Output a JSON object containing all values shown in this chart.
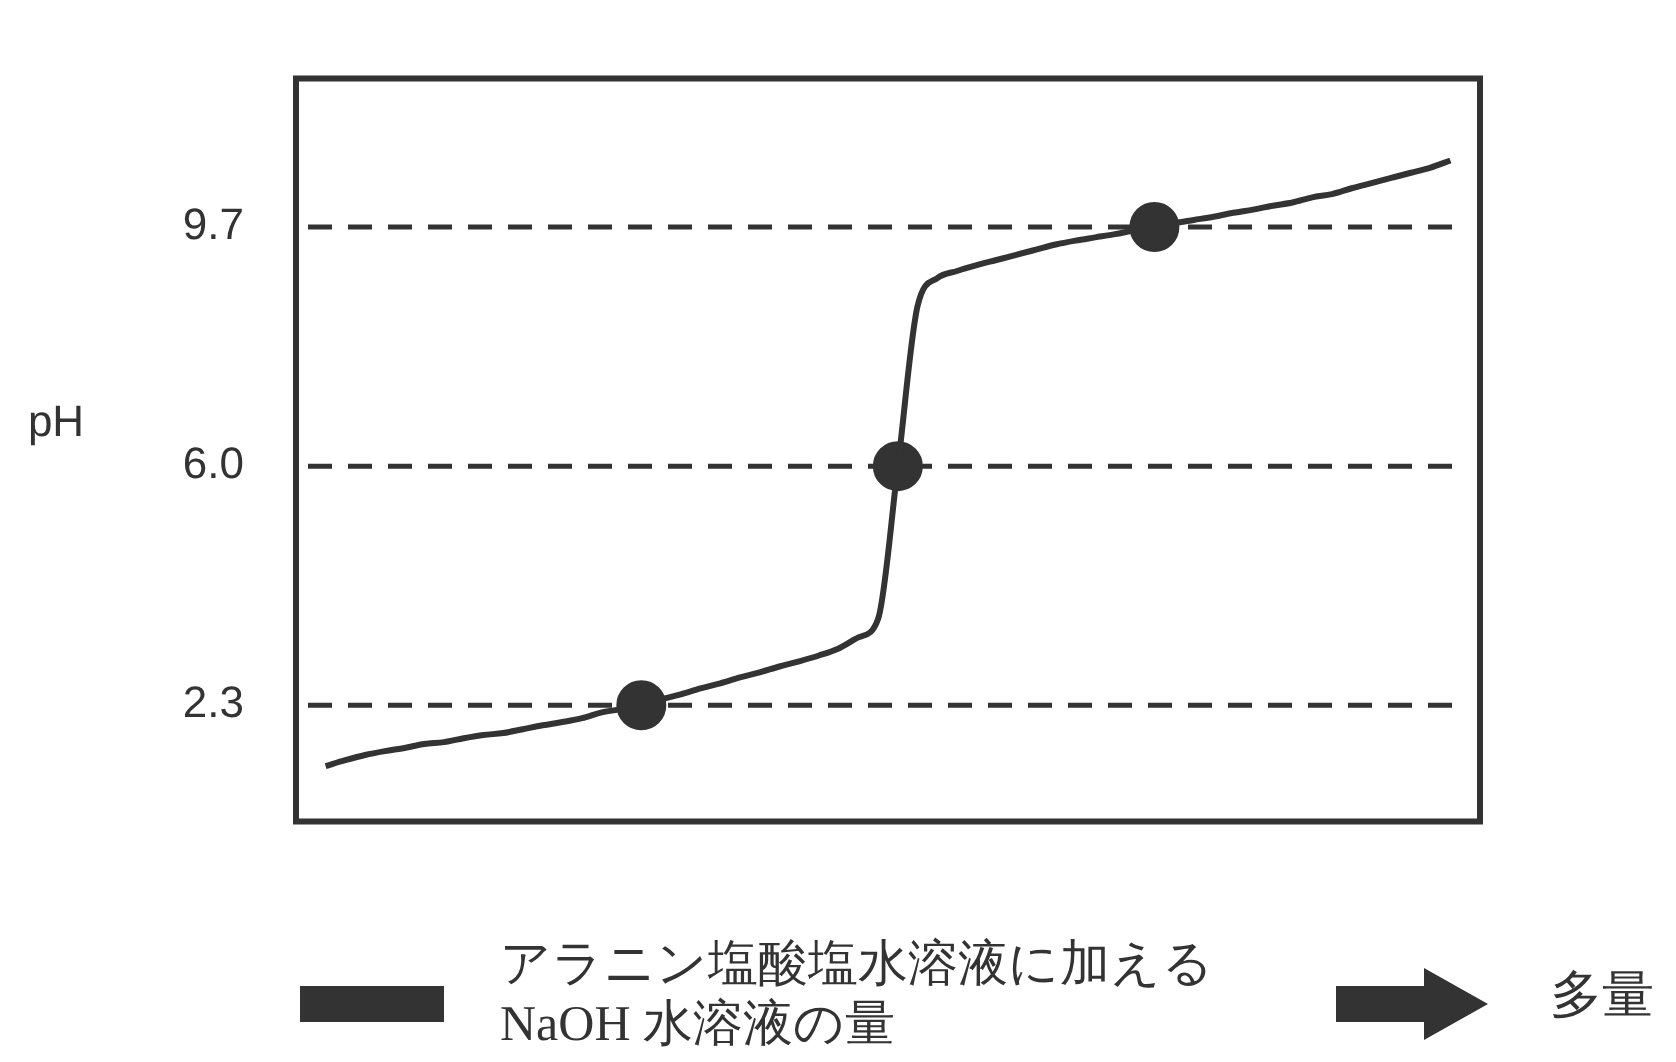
{
  "chart_data": {
    "type": "line",
    "ylabel": "pH",
    "xlabel": "アラニン塩酸塩水溶液に加える\nNaOH 水溶液の量",
    "categories": [
      null,
      null,
      null,
      null,
      null,
      null,
      null,
      null,
      null,
      null,
      null,
      null,
      null,
      null,
      null,
      null,
      null,
      null,
      null,
      null,
      null,
      null,
      null,
      null,
      null,
      null,
      null,
      null,
      null,
      null,
      null,
      null,
      null,
      null,
      null,
      null,
      null,
      null,
      null,
      null,
      null,
      null,
      null,
      null,
      null,
      null,
      null,
      null,
      null,
      null,
      null,
      null,
      null,
      null,
      null,
      null,
      null,
      null,
      null,
      null
    ],
    "series": [
      {
        "color": "#333333",
        "values": [
          null,
          1.36,
          1.45,
          1.53,
          1.59,
          1.64,
          1.7,
          1.73,
          1.79,
          1.84,
          1.87,
          1.93,
          1.99,
          2.04,
          2.1,
          2.19,
          2.24,
          2.3,
          2.39,
          2.47,
          2.56,
          2.64,
          2.73,
          2.81,
          2.9,
          2.98,
          3.07,
          3.18,
          3.35,
          3.64,
          6.0,
          8.48,
          8.91,
          9.02,
          9.11,
          9.19,
          9.27,
          9.35,
          9.43,
          9.49,
          9.54,
          9.59,
          9.65,
          9.7,
          9.76,
          9.81,
          9.86,
          9.92,
          9.97,
          10.03,
          10.08,
          10.16,
          10.21,
          10.3,
          10.38,
          10.46,
          10.54,
          10.62,
          10.73,
          null
        ]
      },
      {
        "type": "scatter",
        "color": "#333333",
        "values": [
          null,
          null,
          null,
          null,
          null,
          null,
          null,
          null,
          null,
          null,
          null,
          null,
          null,
          null,
          null,
          null,
          null,
          2.3,
          null,
          null,
          null,
          null,
          null,
          null,
          null,
          null,
          null,
          null,
          null,
          null,
          6.0,
          null,
          null,
          null,
          null,
          null,
          null,
          null,
          null,
          null,
          null,
          null,
          null,
          9.7,
          null,
          null,
          null,
          null,
          null,
          null,
          null,
          null,
          null,
          null,
          null,
          null,
          null,
          null,
          null,
          null
        ]
      }
    ],
    "line_style": "solid",
    "ylim": [
      0.5,
      12
    ],
    "yticks": [
      2.3,
      {
        "value": 6,
        "label": "6.0"
      },
      9.7
    ],
    "ref_lines": [
      {
        "axis": "y",
        "value": 2.3,
        "line_style": "dashed",
        "color": "#333333"
      },
      {
        "axis": "y",
        "value": 6,
        "line_style": "dashed",
        "color": "#333333"
      },
      {
        "axis": "y",
        "value": 9.7,
        "line_style": "dashed",
        "color": "#333333"
      }
    ],
    "tick_labels": "y",
    "grid": false,
    "legend": false,
    "annotations": [
      "多量"
    ]
  }
}
